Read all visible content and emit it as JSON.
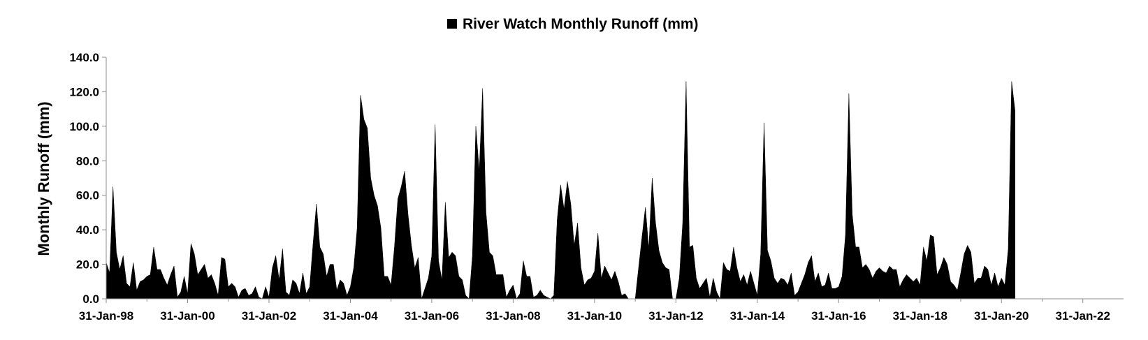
{
  "chart_data": {
    "type": "area",
    "legend": {
      "entries": [
        "River Watch Monthly Runoff (mm)"
      ],
      "placement": "top-center"
    },
    "title": "",
    "xlabel": "",
    "ylabel": "Monthly Runoff (mm)",
    "ylim": [
      0,
      140
    ],
    "yticks": [
      "0.0",
      "20.0",
      "40.0",
      "60.0",
      "80.0",
      "100.0",
      "120.0",
      "140.0"
    ],
    "xlim": [
      "1998-01-31",
      "2023-01-31"
    ],
    "xticks": [
      "31-Jan-98",
      "31-Jan-00",
      "31-Jan-02",
      "31-Jan-04",
      "31-Jan-06",
      "31-Jan-08",
      "31-Jan-10",
      "31-Jan-12",
      "31-Jan-14",
      "31-Jan-16",
      "31-Jan-18",
      "31-Jan-20",
      "31-Jan-22"
    ],
    "grid": false,
    "series_color": "#000000",
    "series": [
      {
        "name": "River Watch Monthly Runoff (mm)",
        "x_start": "1998-01",
        "frequency": "monthly",
        "values": [
          21,
          15,
          65,
          27,
          17,
          25,
          9,
          7,
          21,
          5,
          10,
          11,
          13,
          14,
          30,
          17,
          17,
          12,
          8,
          14,
          19,
          1,
          4,
          13,
          3,
          32,
          26,
          14,
          17,
          20,
          12,
          14,
          9,
          2,
          24,
          23,
          7,
          9,
          7,
          1,
          5,
          6,
          2,
          3,
          7,
          1,
          0,
          7,
          1,
          18,
          25,
          11,
          29,
          4,
          2,
          11,
          9,
          3,
          15,
          3,
          7,
          32,
          55,
          30,
          26,
          13,
          20,
          20,
          5,
          11,
          9,
          2,
          7,
          18,
          41,
          118,
          104,
          99,
          70,
          60,
          54,
          41,
          13,
          13,
          8,
          30,
          58,
          65,
          74,
          49,
          31,
          18,
          24,
          0,
          6,
          12,
          25,
          101,
          22,
          11,
          56,
          24,
          27,
          25,
          13,
          11,
          2,
          0,
          25,
          100,
          74,
          122,
          50,
          27,
          25,
          14,
          14,
          14,
          1,
          5,
          8,
          0,
          3,
          22,
          13,
          13,
          1,
          2,
          5,
          2,
          1,
          0,
          2,
          46,
          66,
          52,
          68,
          55,
          31,
          44,
          18,
          8,
          11,
          12,
          16,
          38,
          12,
          19,
          15,
          11,
          16,
          10,
          2,
          3,
          0,
          0,
          0,
          18,
          36,
          53,
          29,
          70,
          44,
          28,
          21,
          18,
          17,
          0,
          0,
          12,
          44,
          126,
          30,
          31,
          12,
          6,
          9,
          12,
          1,
          12,
          4,
          0,
          21,
          17,
          16,
          30,
          18,
          10,
          14,
          8,
          16,
          9,
          2,
          26,
          102,
          28,
          22,
          12,
          9,
          12,
          11,
          8,
          15,
          2,
          4,
          9,
          14,
          21,
          25,
          10,
          15,
          7,
          8,
          15,
          6,
          6,
          7,
          13,
          37,
          119,
          49,
          30,
          30,
          18,
          20,
          17,
          12,
          16,
          18,
          16,
          15,
          19,
          17,
          17,
          7,
          11,
          14,
          12,
          10,
          12,
          8,
          30,
          22,
          37,
          36,
          14,
          18,
          24,
          20,
          10,
          8,
          5,
          15,
          26,
          31,
          27,
          9,
          12,
          12,
          19,
          17,
          8,
          15,
          7,
          12,
          8,
          29,
          126,
          109
        ]
      }
    ]
  }
}
